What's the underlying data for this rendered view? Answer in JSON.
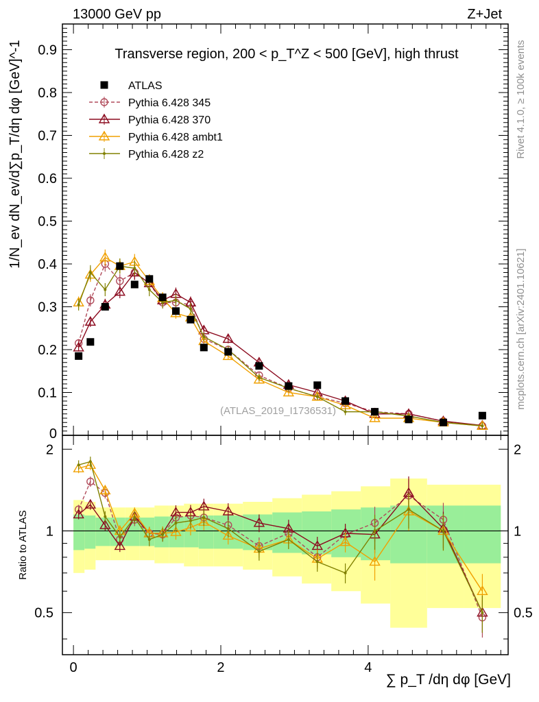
{
  "chart_data": {
    "type": "scatter",
    "header_left": "13000 GeV pp",
    "header_right": "Z+Jet",
    "title": "Transverse region, 200 < p_T^Z < 500 [GeV], high thrust",
    "ylabel": "1/N_ev dN_ev/d∑p_T/dη dφ  [GeV]^-1",
    "ratio_ylabel": "Ratio to ATLAS",
    "xlabel": "∑ p_T /dη dφ [GeV]",
    "watermark": "(ATLAS_2019_I1736531)",
    "side_label_top": "Rivet 4.1.0, ≥ 100k events",
    "side_label_bottom": "mcplots.cern.ch [arXiv:2401.10621]",
    "xlim": [
      -0.15,
      5.9
    ],
    "ylim": [
      0,
      0.96
    ],
    "ratio_ylim": [
      0.35,
      2.25
    ],
    "x_ticks": [
      0,
      2,
      4
    ],
    "x_tick_labels": [
      "0",
      "2",
      "4"
    ],
    "y_ticks": [
      0.1,
      0.2,
      0.3,
      0.4,
      0.5,
      0.6,
      0.7,
      0.8,
      0.9
    ],
    "y_tick_labels": [
      "0.1",
      "0.2",
      "0.3",
      "0.4",
      "0.5",
      "0.6",
      "0.7",
      "0.8",
      "0.9"
    ],
    "y_zero_label": "0",
    "ratio_y_ticks": [
      0.5,
      1,
      2
    ],
    "ratio_y_tick_labels": [
      "0.5",
      "1",
      "2"
    ],
    "bin_edges": [
      0,
      0.15,
      0.3,
      0.5,
      0.7,
      0.9,
      1.1,
      1.3,
      1.5,
      1.7,
      1.9,
      2.3,
      2.7,
      3.1,
      3.5,
      3.9,
      4.3,
      4.8,
      5.3,
      5.8
    ],
    "x": [
      0.07,
      0.23,
      0.43,
      0.63,
      0.83,
      1.03,
      1.21,
      1.39,
      1.59,
      1.77,
      2.1,
      2.52,
      2.92,
      3.31,
      3.69,
      4.09,
      4.55,
      5.02,
      5.55
    ],
    "mc_band_green": [
      0.15,
      0.14,
      0.12,
      0.12,
      0.12,
      0.12,
      0.13,
      0.13,
      0.13,
      0.14,
      0.14,
      0.15,
      0.17,
      0.18,
      0.2,
      0.22,
      0.24,
      0.24,
      0.24
    ],
    "mc_band_yellow": [
      0.3,
      0.28,
      0.22,
      0.22,
      0.22,
      0.22,
      0.24,
      0.24,
      0.26,
      0.26,
      0.26,
      0.28,
      0.32,
      0.36,
      0.4,
      0.46,
      0.56,
      0.48,
      0.48
    ],
    "series": [
      {
        "name": "ATLAS",
        "color": "#000000",
        "marker": "square",
        "dashed": false,
        "values": [
          0.185,
          0.218,
          0.3,
          0.395,
          0.352,
          0.365,
          0.322,
          0.29,
          0.27,
          0.205,
          0.195,
          0.162,
          0.115,
          0.117,
          0.08,
          0.055,
          0.037,
          0.03,
          0.046
        ],
        "ratio": [
          1,
          1,
          1,
          1,
          1,
          1,
          1,
          1,
          1,
          1,
          1,
          1,
          1,
          1,
          1,
          1,
          1,
          1,
          1
        ]
      },
      {
        "name": "Pythia 6.428 345",
        "color": "#b04a5a",
        "marker": "circle",
        "dashed": true,
        "values": [
          0.215,
          0.315,
          0.4,
          0.36,
          0.38,
          0.355,
          0.31,
          0.31,
          0.305,
          0.225,
          0.2,
          0.14,
          0.11,
          0.09,
          0.075,
          0.055,
          0.05,
          0.033,
          0.022
        ],
        "ratio": [
          1.2,
          1.52,
          1.38,
          0.93,
          1.1,
          0.98,
          0.97,
          1.12,
          1.14,
          1.12,
          1.05,
          0.88,
          0.98,
          0.8,
          0.97,
          1.07,
          1.35,
          1.1,
          0.48
        ]
      },
      {
        "name": "Pythia 6.428 370",
        "color": "#8b0a1e",
        "marker": "triangle",
        "dashed": false,
        "values": [
          0.205,
          0.265,
          0.305,
          0.335,
          0.38,
          0.355,
          0.315,
          0.33,
          0.31,
          0.245,
          0.225,
          0.17,
          0.118,
          0.1,
          0.08,
          0.05,
          0.05,
          0.033,
          0.023
        ],
        "ratio": [
          1.15,
          1.25,
          1.05,
          0.88,
          1.13,
          0.98,
          0.98,
          1.17,
          1.17,
          1.23,
          1.18,
          1.07,
          1.02,
          0.88,
          0.98,
          0.97,
          1.38,
          1.02,
          0.5
        ]
      },
      {
        "name": "Pythia 6.428 ambt1",
        "color": "#f0a000",
        "marker": "triangle",
        "dashed": false,
        "values": [
          0.31,
          0.375,
          0.415,
          0.395,
          0.405,
          0.36,
          0.32,
          0.285,
          0.275,
          0.22,
          0.185,
          0.13,
          0.1,
          0.09,
          0.07,
          0.04,
          0.04,
          0.03,
          0.022
        ],
        "ratio": [
          1.7,
          1.75,
          1.41,
          1.0,
          1.16,
          0.98,
          0.98,
          0.99,
          1.03,
          1.08,
          0.96,
          0.86,
          0.93,
          0.79,
          0.91,
          0.77,
          1.18,
          1.0,
          0.6
        ]
      },
      {
        "name": "Pythia 6.428 z2",
        "color": "#808000",
        "marker": "dot",
        "dashed": false,
        "values": [
          0.305,
          0.38,
          0.34,
          0.395,
          0.39,
          0.34,
          0.31,
          0.315,
          0.295,
          0.23,
          0.2,
          0.135,
          0.11,
          0.09,
          0.055,
          0.055,
          0.045,
          0.03,
          0.022
        ],
        "ratio": [
          1.75,
          1.8,
          1.13,
          0.95,
          1.12,
          0.93,
          0.97,
          1.07,
          1.09,
          1.12,
          1.02,
          0.84,
          0.93,
          0.77,
          0.7,
          1.0,
          1.2,
          1.0,
          0.5
        ]
      }
    ]
  }
}
